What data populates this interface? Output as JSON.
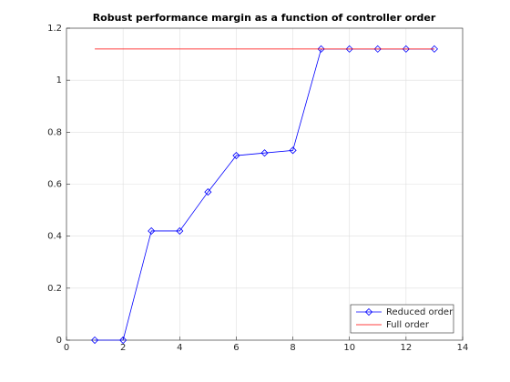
{
  "chart_data": {
    "type": "line",
    "title": "Robust performance margin as a function of controller order",
    "series": [
      {
        "name": "Reduced order",
        "color": "#0000ff",
        "marker": "diamond",
        "x": [
          1,
          2,
          3,
          4,
          5,
          6,
          7,
          8,
          9,
          10,
          11,
          12,
          13
        ],
        "values": [
          0,
          0,
          0.42,
          0.42,
          0.57,
          0.71,
          0.72,
          0.73,
          1.12,
          1.12,
          1.12,
          1.12,
          1.12
        ]
      },
      {
        "name": "Full order",
        "color": "#ff0000",
        "x": [
          1,
          13
        ],
        "values": [
          1.12,
          1.12
        ]
      }
    ],
    "xlim": [
      0,
      14
    ],
    "xticks": [
      0,
      2,
      4,
      6,
      8,
      10,
      12,
      14
    ],
    "ylim": [
      0,
      1.2
    ],
    "yticks": [
      0,
      0.2,
      0.4,
      0.6,
      0.8,
      1,
      1.2
    ],
    "grid": true,
    "legend": "lower right"
  }
}
